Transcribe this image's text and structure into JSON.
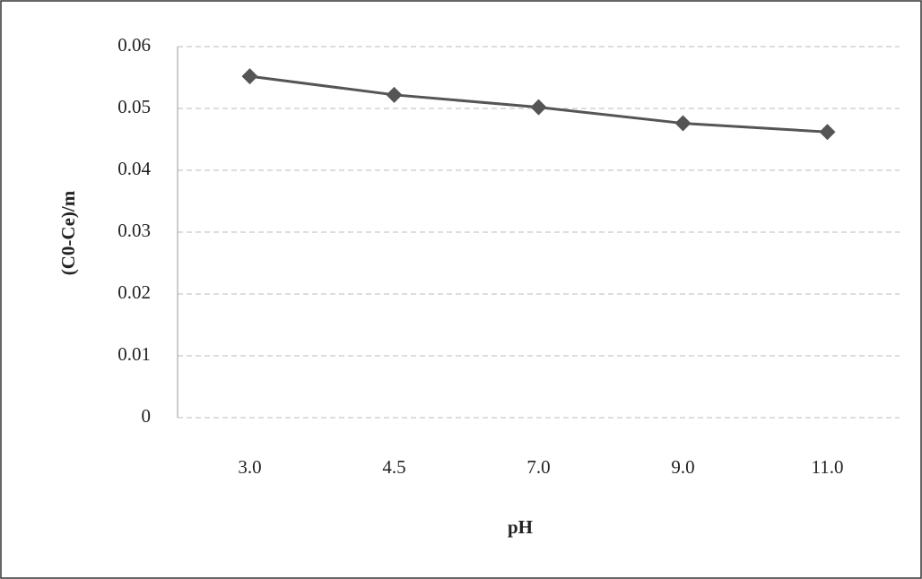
{
  "chart_data": {
    "type": "line",
    "x_label": "pH",
    "y_label": "(C0-Ce)/m",
    "categories": [
      "3.0",
      "4.5",
      "7.0",
      "9.0",
      "11.0"
    ],
    "series": [
      {
        "name": "(C0-Ce)/m",
        "color": "#555555",
        "values": [
          0.0552,
          0.0522,
          0.0502,
          0.0476,
          0.0462
        ]
      }
    ],
    "ylim": [
      0,
      0.06
    ],
    "yticks": [
      0,
      0.01,
      0.02,
      0.03,
      0.04,
      0.05,
      0.06
    ],
    "grid": true
  }
}
